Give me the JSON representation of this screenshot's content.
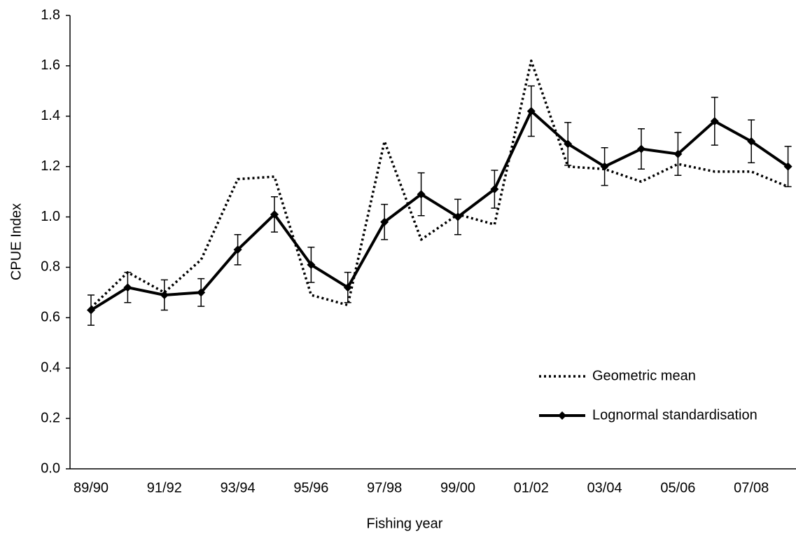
{
  "chart_data": {
    "type": "line",
    "xlabel": "Fishing year",
    "ylabel": "CPUE  Index",
    "categories": [
      "89/90",
      null,
      "91/92",
      null,
      "93/94",
      null,
      "95/96",
      null,
      "97/98",
      null,
      "99/00",
      null,
      "01/02",
      null,
      "03/04",
      null,
      "05/06",
      null,
      "07/08",
      null
    ],
    "series": [
      {
        "name": "Geometric mean",
        "color": "#000000",
        "style": "dotted",
        "values": [
          0.64,
          0.78,
          0.7,
          0.83,
          1.15,
          1.16,
          0.69,
          0.65,
          1.3,
          0.91,
          1.01,
          0.97,
          1.62,
          1.2,
          1.19,
          1.14,
          1.21,
          1.18,
          1.18,
          1.12
        ]
      },
      {
        "name": "Lognormal standardisation",
        "color": "#000000",
        "style": "solid",
        "marker": "diamond",
        "values": [
          0.63,
          0.72,
          0.69,
          0.7,
          0.87,
          1.01,
          0.81,
          0.72,
          0.98,
          1.09,
          1.0,
          1.11,
          1.42,
          1.29,
          1.2,
          1.27,
          1.25,
          1.38,
          1.3,
          1.2
        ],
        "errors": [
          0.06,
          0.06,
          0.06,
          0.055,
          0.06,
          0.07,
          0.07,
          0.06,
          0.07,
          0.085,
          0.07,
          0.075,
          0.1,
          0.085,
          0.075,
          0.08,
          0.085,
          0.095,
          0.085,
          0.08
        ]
      }
    ],
    "ylim": [
      0,
      1.8
    ],
    "yticks": [
      {
        "value": 0,
        "label": "0.0"
      },
      0.2,
      0.4,
      0.6,
      0.8,
      {
        "value": 1,
        "label": "1.0"
      },
      1.2,
      1.4,
      1.6,
      1.8
    ],
    "grid": false,
    "legend": "lower right"
  }
}
